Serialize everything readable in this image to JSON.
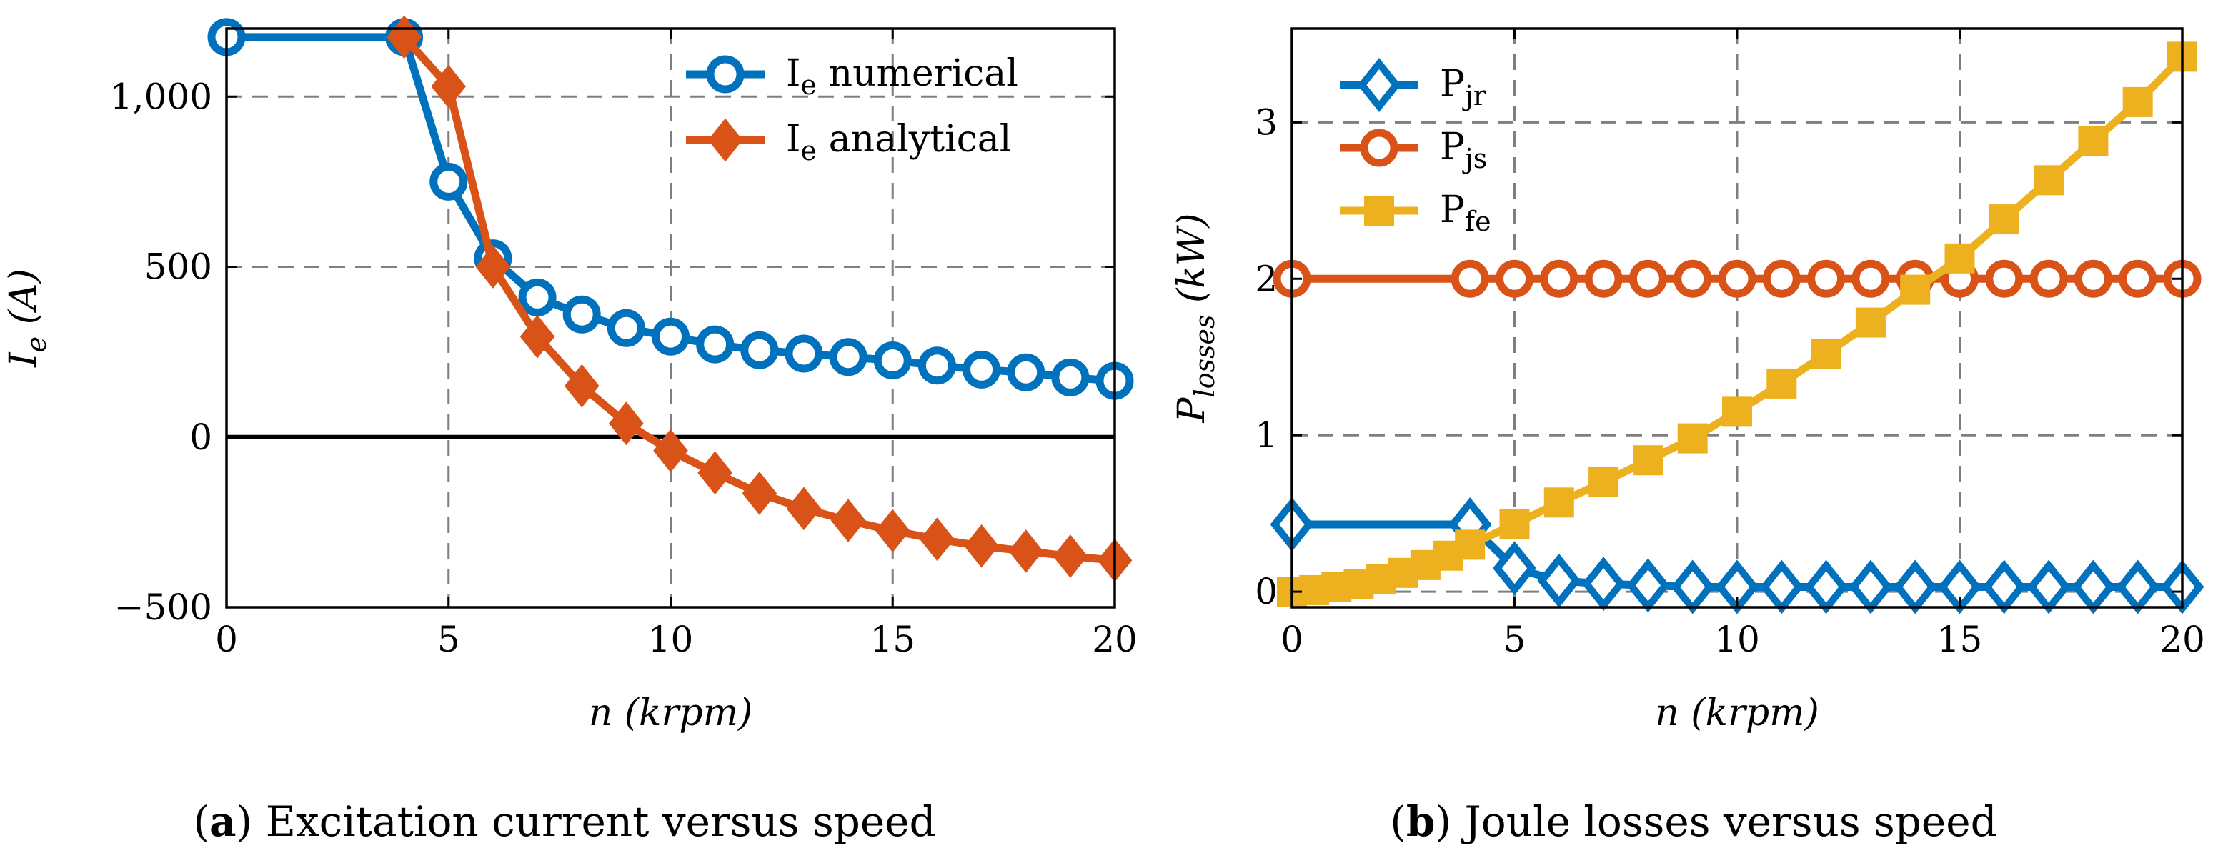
{
  "chart_data": [
    {
      "type": "line",
      "id": "a",
      "caption_letter": "a",
      "caption_text": "Excitation current versus speed",
      "ylabel": {
        "main": "I",
        "sub": "e",
        "unit": "(A)"
      },
      "xlabel": {
        "main": "n",
        "unit": "(krpm)"
      },
      "xlim": [
        0,
        20
      ],
      "ylim": [
        -500,
        1200
      ],
      "xticks": [
        0,
        5,
        10,
        15,
        20
      ],
      "yticks": [
        -500,
        0,
        500,
        1000
      ],
      "ytick_labels": [
        "−500",
        "0",
        "500",
        "1,000"
      ],
      "grid": "dashed",
      "zero_line": true,
      "legend_position": "top-right",
      "series": [
        {
          "name": "numerical",
          "legend_main": "I",
          "legend_sub": "e",
          "legend_rest": " numerical",
          "color": "#0072BD",
          "marker": "circle",
          "x": [
            0,
            4,
            5,
            6,
            7,
            8,
            9,
            10,
            11,
            12,
            13,
            14,
            15,
            16,
            17,
            18,
            19,
            20
          ],
          "values": [
            1175,
            1175,
            750,
            525,
            410,
            360,
            320,
            295,
            272,
            255,
            245,
            235,
            225,
            210,
            198,
            190,
            175,
            165
          ]
        },
        {
          "name": "analytical",
          "legend_main": "I",
          "legend_sub": "e",
          "legend_rest": " analytical",
          "color": "#D95319",
          "marker": "diamond",
          "x": [
            4,
            5,
            6,
            7,
            8,
            9,
            10,
            11,
            12,
            13,
            14,
            15,
            16,
            17,
            18,
            19,
            20
          ],
          "values": [
            1175,
            1030,
            500,
            295,
            150,
            40,
            -40,
            -105,
            -165,
            -210,
            -245,
            -275,
            -300,
            -320,
            -335,
            -350,
            -362
          ]
        }
      ]
    },
    {
      "type": "line",
      "id": "b",
      "caption_letter": "b",
      "caption_text": "Joule losses versus speed",
      "ylabel": {
        "main": "P",
        "sub": "losses",
        "unit": "(kW)"
      },
      "xlabel": {
        "main": "n",
        "unit": "(krpm)"
      },
      "xlim": [
        0,
        20
      ],
      "ylim": [
        -0.1,
        3.6
      ],
      "xticks": [
        0,
        5,
        10,
        15,
        20
      ],
      "yticks": [
        0,
        1,
        2,
        3
      ],
      "ytick_labels": [
        "0",
        "1",
        "2",
        "3"
      ],
      "grid": "dashed",
      "zero_line": false,
      "legend_position": "top-left",
      "series": [
        {
          "name": "Pjr",
          "legend_main": "P",
          "legend_sub": "jr",
          "legend_rest": "",
          "color": "#0072BD",
          "marker": "diamond-open",
          "x": [
            0,
            4,
            5,
            6,
            7,
            8,
            9,
            10,
            11,
            12,
            13,
            14,
            15,
            16,
            17,
            18,
            19,
            20
          ],
          "values": [
            0.43,
            0.43,
            0.15,
            0.07,
            0.05,
            0.04,
            0.03,
            0.03,
            0.03,
            0.03,
            0.03,
            0.03,
            0.03,
            0.03,
            0.03,
            0.03,
            0.03,
            0.03
          ]
        },
        {
          "name": "Pjs",
          "legend_main": "P",
          "legend_sub": "js",
          "legend_rest": "",
          "color": "#D95319",
          "marker": "circle-open",
          "x": [
            0,
            4,
            5,
            6,
            7,
            8,
            9,
            10,
            11,
            12,
            13,
            14,
            15,
            16,
            17,
            18,
            19,
            20
          ],
          "values": [
            2,
            2,
            2,
            2,
            2,
            2,
            2,
            2,
            2,
            2,
            2,
            2,
            2,
            2,
            2,
            2,
            2,
            2
          ]
        },
        {
          "name": "Pfe",
          "legend_main": "P",
          "legend_sub": "fe",
          "legend_rest": "",
          "color": "#EDB120",
          "marker": "square",
          "x": [
            0,
            0.5,
            1,
            1.5,
            2,
            2.5,
            3,
            3.5,
            4,
            5,
            6,
            7,
            8,
            9,
            10,
            11,
            12,
            13,
            14,
            15,
            16,
            17,
            18,
            19,
            20
          ],
          "values": [
            0,
            0.01,
            0.03,
            0.05,
            0.08,
            0.12,
            0.17,
            0.23,
            0.3,
            0.43,
            0.57,
            0.7,
            0.84,
            0.98,
            1.15,
            1.33,
            1.52,
            1.72,
            1.93,
            2.13,
            2.38,
            2.63,
            2.88,
            3.13,
            3.42
          ]
        }
      ]
    }
  ]
}
